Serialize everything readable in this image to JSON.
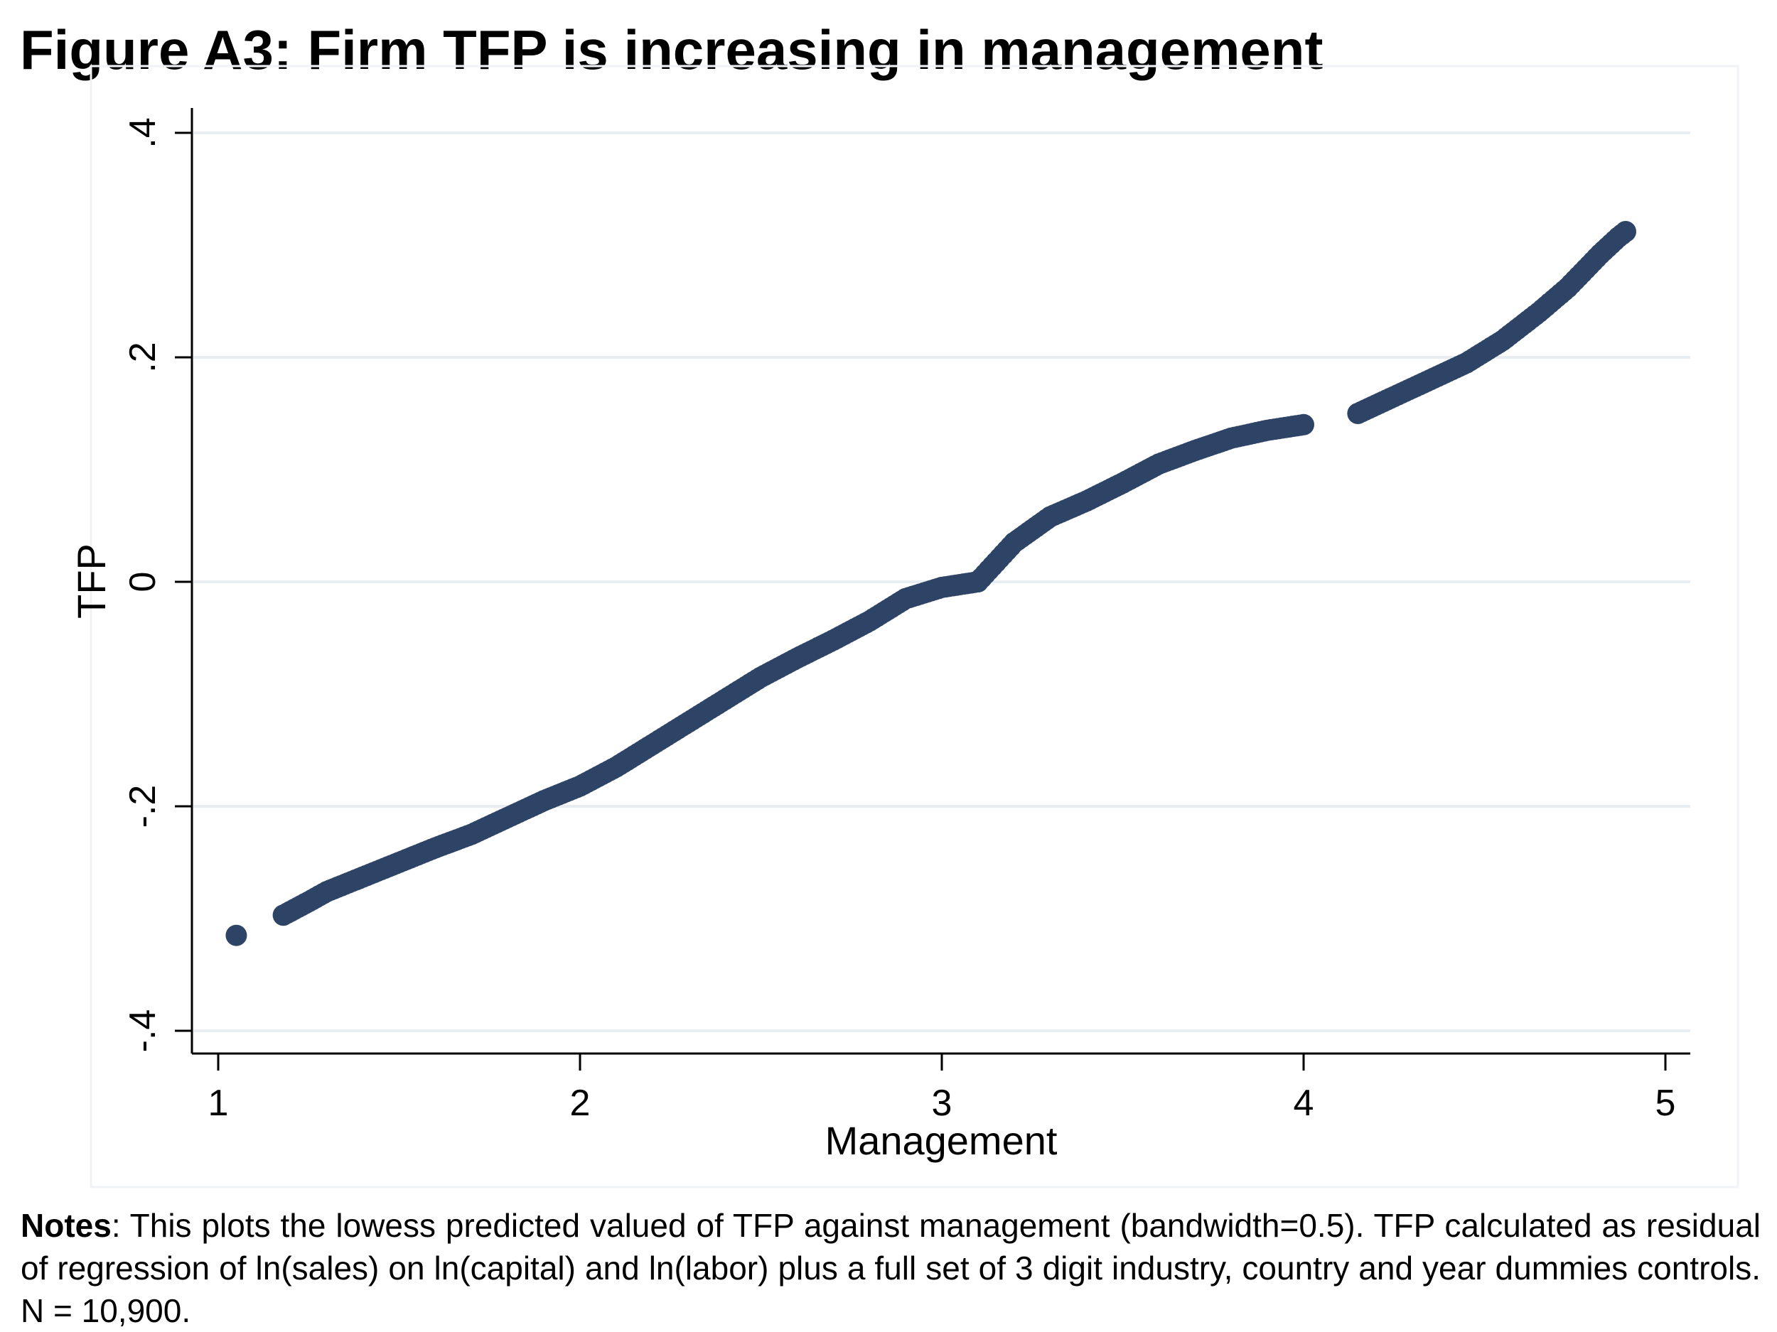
{
  "figure": {
    "title": "Figure A3: Firm TFP is increasing in management",
    "notes_label": "Notes",
    "notes_text": ": This plots the lowess predicted valued of TFP against management (bandwidth=0.5). TFP calculated as residual of  regression of ln(sales) on ln(capital) and ln(labor) plus a full set of 3 digit industry, country and year dummies controls. N = 10,900."
  },
  "colors": {
    "marker": "#2e4466",
    "grid": "#e7edf1",
    "axis": "#000000",
    "background": "#ffffff"
  },
  "chart_data": {
    "type": "scatter",
    "title": "",
    "xlabel": "Management",
    "ylabel": "TFP",
    "xlim": [
      1,
      5
    ],
    "ylim": [
      -0.4,
      0.4
    ],
    "x_ticks": [
      1,
      2,
      3,
      4,
      5
    ],
    "x_tick_labels": [
      "1",
      "2",
      "3",
      "4",
      "5"
    ],
    "y_ticks": [
      -0.4,
      -0.2,
      0,
      0.2,
      0.4
    ],
    "y_tick_labels": [
      "-.4",
      "-.2",
      "0",
      ".2",
      ".4"
    ],
    "grid": true,
    "legend": "none",
    "series": [
      {
        "x": [
          1.05,
          1.18,
          1.25,
          1.3,
          1.4,
          1.5,
          1.6,
          1.7,
          1.8,
          1.9,
          2.0,
          2.1,
          2.2,
          2.3,
          2.4,
          2.5,
          2.6,
          2.7,
          2.8,
          2.9,
          3.0,
          3.1,
          3.2,
          3.3,
          3.4,
          3.5,
          3.6,
          3.7,
          3.8,
          3.9,
          4.0,
          4.15,
          4.25,
          4.35,
          4.45,
          4.55,
          4.65,
          4.73,
          4.82,
          4.87,
          4.89
        ],
        "y": [
          -0.315,
          -0.297,
          -0.285,
          -0.276,
          -0.263,
          -0.25,
          -0.237,
          -0.225,
          -0.21,
          -0.195,
          -0.182,
          -0.165,
          -0.145,
          -0.125,
          -0.105,
          -0.085,
          -0.068,
          -0.052,
          -0.035,
          -0.015,
          -0.005,
          0.0,
          0.035,
          0.058,
          0.072,
          0.088,
          0.105,
          0.117,
          0.128,
          0.135,
          0.14,
          0.15,
          0.165,
          0.18,
          0.195,
          0.215,
          0.24,
          0.262,
          0.292,
          0.307,
          0.312
        ]
      }
    ]
  }
}
